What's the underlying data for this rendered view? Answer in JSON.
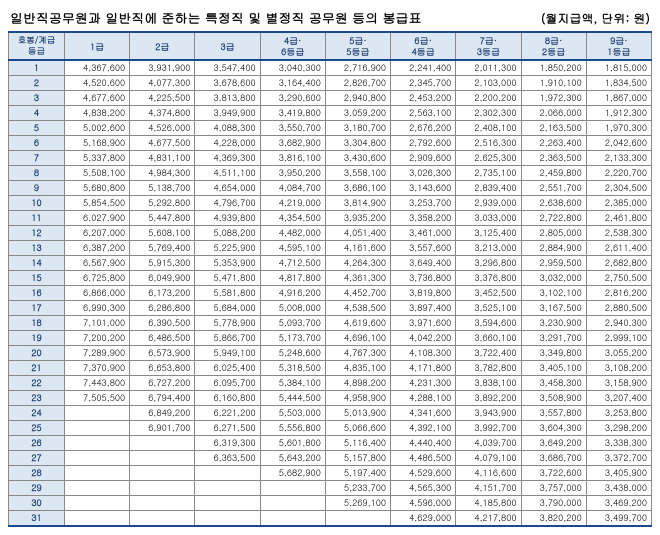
{
  "title": "일반직공무원과 일반직에 준하는 특정직 및 별정직 공무원 등의 봉급표",
  "unit": "(월지급액, 단위: 원)",
  "corner": "호봉/계급 등급",
  "columns": [
    "1급",
    "2급",
    "3급",
    "4급·\n6등급",
    "5급·\n5등급",
    "6급·\n4등급",
    "7급·\n3등급",
    "8급·\n2등급",
    "9급·\n1등급"
  ],
  "rows": [
    {
      "step": "1",
      "v": [
        "4,367,600",
        "3,931,900",
        "3,547,400",
        "3,040,300",
        "2,716,900",
        "2,241,400",
        "2,011,300",
        "1,850,200",
        "1,815,000"
      ]
    },
    {
      "step": "2",
      "v": [
        "4,520,600",
        "4,077,300",
        "3,678,600",
        "3,164,400",
        "2,826,700",
        "2,345,700",
        "2,103,000",
        "1,910,100",
        "1,834,500"
      ]
    },
    {
      "step": "3",
      "v": [
        "4,677,600",
        "4,225,500",
        "3,813,800",
        "3,290,600",
        "2,940,800",
        "2,453,200",
        "2,200,200",
        "1,972,300",
        "1,867,000"
      ]
    },
    {
      "step": "4",
      "v": [
        "4,838,200",
        "4,374,800",
        "3,949,900",
        "3,419,800",
        "3,059,200",
        "2,563,100",
        "2,302,300",
        "2,066,000",
        "1,912,300"
      ]
    },
    {
      "step": "5",
      "v": [
        "5,002,600",
        "4,526,000",
        "4,088,300",
        "3,550,700",
        "3,180,700",
        "2,676,200",
        "2,408,100",
        "2,163,500",
        "1,970,300"
      ]
    },
    {
      "step": "6",
      "v": [
        "5,168,900",
        "4,677,500",
        "4,228,000",
        "3,682,900",
        "3,304,800",
        "2,792,600",
        "2,516,300",
        "2,263,400",
        "2,042,600"
      ]
    },
    {
      "step": "7",
      "v": [
        "5,337,800",
        "4,831,100",
        "4,369,300",
        "3,816,100",
        "3,430,600",
        "2,909,600",
        "2,625,300",
        "2,363,500",
        "2,133,300"
      ]
    },
    {
      "step": "8",
      "v": [
        "5,508,100",
        "4,984,300",
        "4,511,100",
        "3,950,200",
        "3,558,100",
        "3,026,300",
        "2,735,100",
        "2,459,800",
        "2,220,700"
      ]
    },
    {
      "step": "9",
      "v": [
        "5,680,800",
        "5,138,700",
        "4,654,000",
        "4,084,700",
        "3,686,100",
        "3,143,600",
        "2,839,400",
        "2,551,700",
        "2,304,500"
      ]
    },
    {
      "step": "10",
      "v": [
        "5,854,500",
        "5,292,800",
        "4,796,700",
        "4,219,000",
        "3,814,900",
        "3,253,700",
        "2,939,000",
        "2,638,600",
        "2,385,000"
      ]
    },
    {
      "step": "11",
      "v": [
        "6,027,900",
        "5,447,800",
        "4,939,800",
        "4,354,500",
        "3,935,200",
        "3,358,200",
        "3,033,000",
        "2,722,800",
        "2,461,800"
      ]
    },
    {
      "step": "12",
      "v": [
        "6,207,000",
        "5,608,100",
        "5,088,200",
        "4,482,000",
        "4,051,400",
        "3,461,000",
        "3,125,400",
        "2,805,000",
        "2,538,300"
      ]
    },
    {
      "step": "13",
      "v": [
        "6,387,200",
        "5,769,400",
        "5,225,900",
        "4,595,100",
        "4,161,600",
        "3,557,600",
        "3,213,000",
        "2,884,900",
        "2,611,400"
      ]
    },
    {
      "step": "14",
      "v": [
        "6,567,900",
        "5,915,300",
        "5,353,900",
        "4,712,500",
        "4,264,300",
        "3,649,400",
        "3,296,800",
        "2,959,500",
        "2,682,800"
      ]
    },
    {
      "step": "15",
      "v": [
        "6,725,800",
        "6,049,900",
        "5,471,800",
        "4,817,800",
        "4,361,300",
        "3,736,800",
        "3,376,800",
        "3,032,000",
        "2,750,500"
      ]
    },
    {
      "step": "16",
      "v": [
        "6,866,000",
        "6,173,200",
        "5,581,800",
        "4,916,200",
        "4,452,700",
        "3,819,800",
        "3,452,500",
        "3,102,100",
        "2,816,200"
      ]
    },
    {
      "step": "17",
      "v": [
        "6,990,300",
        "6,286,800",
        "5,684,000",
        "5,008,000",
        "4,538,500",
        "3,897,400",
        "3,525,100",
        "3,167,500",
        "2,880,500"
      ]
    },
    {
      "step": "18",
      "v": [
        "7,101,000",
        "6,390,500",
        "5,778,900",
        "5,093,700",
        "4,619,600",
        "3,971,600",
        "3,594,600",
        "3,230,900",
        "2,940,300"
      ]
    },
    {
      "step": "19",
      "v": [
        "7,200,200",
        "6,486,500",
        "5,866,700",
        "5,173,700",
        "4,696,100",
        "4,042,200",
        "3,660,100",
        "3,291,700",
        "2,999,100"
      ]
    },
    {
      "step": "20",
      "v": [
        "7,289,900",
        "6,573,900",
        "5,949,100",
        "5,248,600",
        "4,767,300",
        "4,108,300",
        "3,722,400",
        "3,349,800",
        "3,055,200"
      ]
    },
    {
      "step": "21",
      "v": [
        "7,370,900",
        "6,653,800",
        "6,025,400",
        "5,318,500",
        "4,835,100",
        "4,171,800",
        "3,782,800",
        "3,405,100",
        "3,108,200"
      ]
    },
    {
      "step": "22",
      "v": [
        "7,443,800",
        "6,727,200",
        "6,095,700",
        "5,384,100",
        "4,898,200",
        "4,231,300",
        "3,838,100",
        "3,458,300",
        "3,158,900"
      ]
    },
    {
      "step": "23",
      "v": [
        "7,505,500",
        "6,794,400",
        "6,160,800",
        "5,444,500",
        "4,958,900",
        "4,288,100",
        "3,892,200",
        "3,508,900",
        "3,207,400"
      ]
    },
    {
      "step": "24",
      "v": [
        "",
        "6,849,200",
        "6,221,200",
        "5,503,000",
        "5,013,900",
        "4,341,600",
        "3,943,900",
        "3,557,800",
        "3,253,800"
      ]
    },
    {
      "step": "25",
      "v": [
        "",
        "6,901,700",
        "6,271,500",
        "5,556,800",
        "5,066,600",
        "4,392,100",
        "3,992,700",
        "3,604,300",
        "3,298,200"
      ]
    },
    {
      "step": "26",
      "v": [
        "",
        "",
        "6,319,300",
        "5,601,800",
        "5,116,400",
        "4,440,400",
        "4,039,700",
        "3,649,200",
        "3,338,300"
      ]
    },
    {
      "step": "27",
      "v": [
        "",
        "",
        "6,363,500",
        "5,643,200",
        "5,157,800",
        "4,486,500",
        "4,079,100",
        "3,686,700",
        "3,372,700"
      ]
    },
    {
      "step": "28",
      "v": [
        "",
        "",
        "",
        "5,682,900",
        "5,197,400",
        "4,529,600",
        "4,116,600",
        "3,722,600",
        "3,405,900"
      ]
    },
    {
      "step": "29",
      "v": [
        "",
        "",
        "",
        "",
        "5,233,700",
        "4,565,300",
        "4,151,700",
        "3,757,000",
        "3,438,000"
      ]
    },
    {
      "step": "30",
      "v": [
        "",
        "",
        "",
        "",
        "5,269,100",
        "4,596,000",
        "4,185,800",
        "3,790,000",
        "3,469,200"
      ]
    },
    {
      "step": "31",
      "v": [
        "",
        "",
        "",
        "",
        "",
        "4,629,000",
        "4,217,800",
        "3,820,200",
        "3,499,700"
      ]
    }
  ],
  "style": {
    "header_bg": "#dbe7f3",
    "header_fg": "#1a3a6e",
    "border_strong": "#1a4a8a",
    "border": "#888"
  }
}
